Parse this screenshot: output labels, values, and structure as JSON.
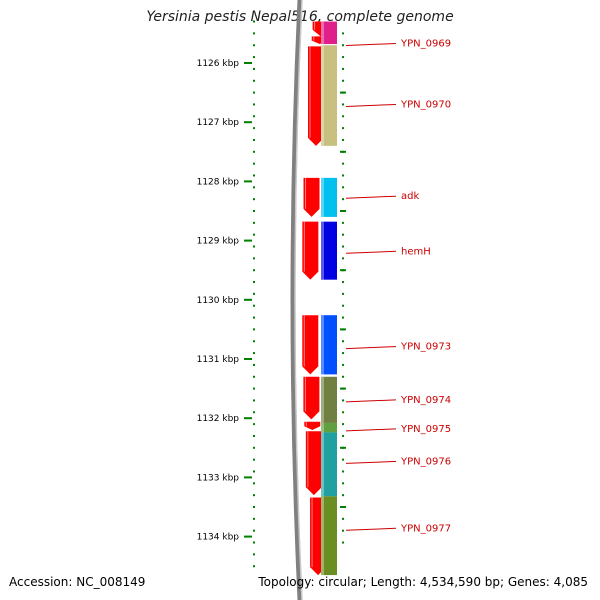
{
  "header": {
    "title": "Yersinia pestis Nepal516, complete genome"
  },
  "footer": {
    "accession": "Accession: NC_008149",
    "summary": "Topology: circular; Length: 4,534,590 bp; Genes: 4,085"
  },
  "colors": {
    "strand_arrow": "#ff0000",
    "ruler": "#008000",
    "backbone": "#808080",
    "label": "#cc0000"
  },
  "diagram": {
    "kbp_range": [
      1125.3,
      1134.65
    ],
    "ruler_ticks": [
      {
        "kbp": 1126,
        "label": "1126 kbp"
      },
      {
        "kbp": 1127,
        "label": "1127 kbp"
      },
      {
        "kbp": 1128,
        "label": "1128 kbp"
      },
      {
        "kbp": 1129,
        "label": "1129 kbp"
      },
      {
        "kbp": 1130,
        "label": "1130 kbp"
      },
      {
        "kbp": 1131,
        "label": "1131 kbp"
      },
      {
        "kbp": 1132,
        "label": "1132 kbp"
      },
      {
        "kbp": 1133,
        "label": "1133 kbp"
      },
      {
        "kbp": 1134,
        "label": "1134 kbp"
      }
    ],
    "genes": [
      {
        "name": "YPN_0969",
        "start_kbp": 1125.3,
        "end_kbp": 1125.68,
        "color": "#e0208a",
        "label_kbp": 1125.67
      },
      {
        "name": "YPN_0970",
        "start_kbp": 1125.7,
        "end_kbp": 1127.4,
        "color": "#c8c080",
        "label_kbp": 1126.7
      },
      {
        "name": "adk",
        "start_kbp": 1127.94,
        "end_kbp": 1128.6,
        "color": "#00c0f0",
        "label_kbp": 1128.25
      },
      {
        "name": "hemH",
        "start_kbp": 1128.68,
        "end_kbp": 1129.66,
        "color": "#0000e0",
        "label_kbp": 1129.18
      },
      {
        "name": "YPN_0973",
        "start_kbp": 1130.26,
        "end_kbp": 1131.26,
        "color": "#0050ff",
        "label_kbp": 1130.79
      },
      {
        "name": "YPN_0974",
        "start_kbp": 1131.3,
        "end_kbp": 1132.08,
        "color": "#708040",
        "label_kbp": 1131.69
      },
      {
        "name": "YPN_0975",
        "start_kbp": 1132.08,
        "end_kbp": 1132.24,
        "color": "#60a040",
        "label_kbp": 1132.18
      },
      {
        "name": "YPN_0976",
        "start_kbp": 1132.24,
        "end_kbp": 1133.32,
        "color": "#20a0a0",
        "label_kbp": 1132.73
      },
      {
        "name": "YPN_0977",
        "start_kbp": 1133.32,
        "end_kbp": 1134.65,
        "color": "#6b8e23",
        "label_kbp": 1133.86
      }
    ],
    "strand_arrows": [
      {
        "start_kbp": 1125.3,
        "end_kbp": 1125.55
      },
      {
        "start_kbp": 1125.55,
        "end_kbp": 1125.68
      },
      {
        "start_kbp": 1125.72,
        "end_kbp": 1127.4
      },
      {
        "start_kbp": 1127.94,
        "end_kbp": 1128.6
      },
      {
        "start_kbp": 1128.68,
        "end_kbp": 1129.66
      },
      {
        "start_kbp": 1130.26,
        "end_kbp": 1131.26
      },
      {
        "start_kbp": 1131.3,
        "end_kbp": 1132.02
      },
      {
        "start_kbp": 1132.06,
        "end_kbp": 1132.2
      },
      {
        "start_kbp": 1132.22,
        "end_kbp": 1133.3
      },
      {
        "start_kbp": 1133.34,
        "end_kbp": 1134.65
      }
    ]
  }
}
